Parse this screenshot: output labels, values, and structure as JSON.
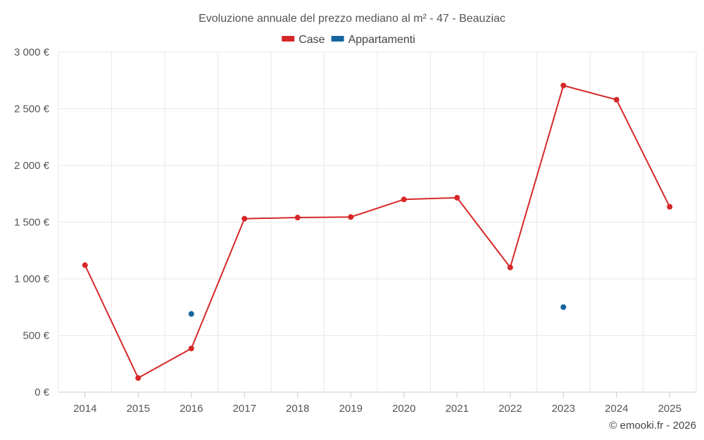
{
  "chart_data": {
    "type": "line",
    "title": "Evoluzione annuale del prezzo mediano al m² - 47 - Beauziac",
    "categories": [
      "2014",
      "2015",
      "2016",
      "2017",
      "2018",
      "2019",
      "2020",
      "2021",
      "2022",
      "2023",
      "2024",
      "2025"
    ],
    "series": [
      {
        "name": "Case",
        "color": "#d62728",
        "draw_line": true,
        "values": [
          1120,
          125,
          385,
          1530,
          1540,
          1545,
          1700,
          1715,
          1100,
          2705,
          2580,
          1635
        ]
      },
      {
        "name": "Appartamenti",
        "color": "#1565a0",
        "draw_line": false,
        "values": [
          null,
          null,
          690,
          null,
          null,
          null,
          null,
          null,
          null,
          750,
          null,
          null
        ]
      }
    ],
    "y_ticks": [
      0,
      500,
      1000,
      1500,
      2000,
      2500,
      3000
    ],
    "y_tick_labels": [
      "0 €",
      "500 €",
      "1 000 €",
      "1 500 €",
      "2 000 €",
      "2 500 €",
      "3 000 €"
    ],
    "ylim": [
      0,
      3000
    ],
    "xlabel": "",
    "ylabel": "",
    "grid": true,
    "legend_position": "top-center"
  },
  "credit": "© emooki.fr - 2026"
}
